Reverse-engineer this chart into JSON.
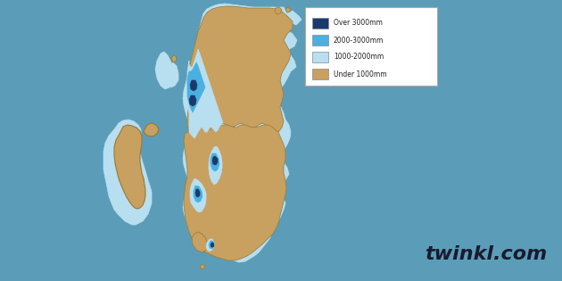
{
  "background_color": "#5b9db8",
  "sea_halo_color": "#6aadca",
  "legend_items": [
    {
      "label": "Over 3000mm",
      "color": "#1a3a6b"
    },
    {
      "label": "2000-3000mm",
      "color": "#4ab0e0"
    },
    {
      "label": "1000-2000mm",
      "color": "#b8dff0"
    },
    {
      "label": "Under 1000mm",
      "color": "#c8a060"
    }
  ],
  "watermark": "twinkl.com",
  "watermark_color": "#1a1a2e",
  "watermark_fontsize": 16
}
